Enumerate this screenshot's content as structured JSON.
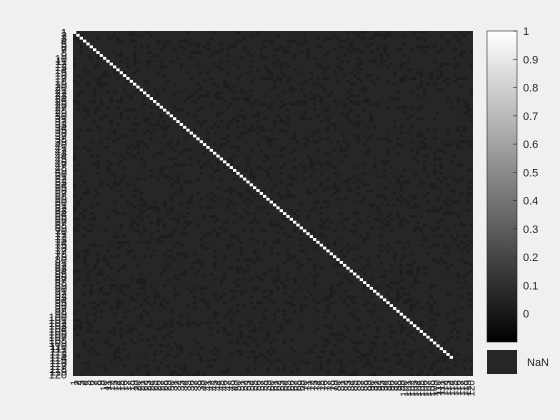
{
  "chart_data": {
    "type": "heatmap",
    "title": "",
    "xlabel": "",
    "ylabel": "",
    "n": 120,
    "values_description_only": false,
    "diagonal_value": 1,
    "off_diagonal_value": null,
    "diagonal_shown_rows": [
      1,
      2,
      3,
      4,
      5,
      6,
      7,
      8,
      9,
      10,
      11,
      12,
      13,
      14,
      15,
      16,
      17,
      18,
      19,
      20,
      21,
      22,
      23,
      24,
      25,
      26,
      27,
      28,
      29,
      30,
      31,
      32,
      33,
      34,
      35,
      36,
      37,
      38,
      39,
      40,
      41,
      42,
      43,
      44,
      45,
      46,
      47,
      48,
      49,
      50,
      51,
      52,
      53,
      54,
      55,
      56,
      57,
      58,
      59,
      60,
      61,
      62,
      63,
      64,
      65,
      66,
      67,
      68,
      69,
      70,
      71,
      72,
      73,
      74,
      75,
      76,
      77,
      78,
      79,
      80,
      81,
      82,
      83,
      84,
      85,
      86,
      87,
      88,
      89,
      90,
      91,
      92,
      93,
      94,
      95,
      96,
      97,
      98,
      99,
      100,
      101,
      102,
      103,
      104,
      105,
      106,
      107,
      108,
      109,
      110,
      111,
      112,
      113,
      114
    ],
    "y_visible_labels": [
      "1",
      "114"
    ],
    "x_visible_labels": [
      "79"
    ],
    "colorbar": {
      "range": [
        -0.1,
        1
      ],
      "ticks": [
        "0",
        "0.1",
        "0.2",
        "0.3",
        "0.4",
        "0.5",
        "0.6",
        "0.7",
        "0.8",
        "0.9",
        "1"
      ],
      "colormap": "gray"
    },
    "nan_label": "NaN",
    "nan_color": "#262626",
    "background_color": "#262626"
  }
}
